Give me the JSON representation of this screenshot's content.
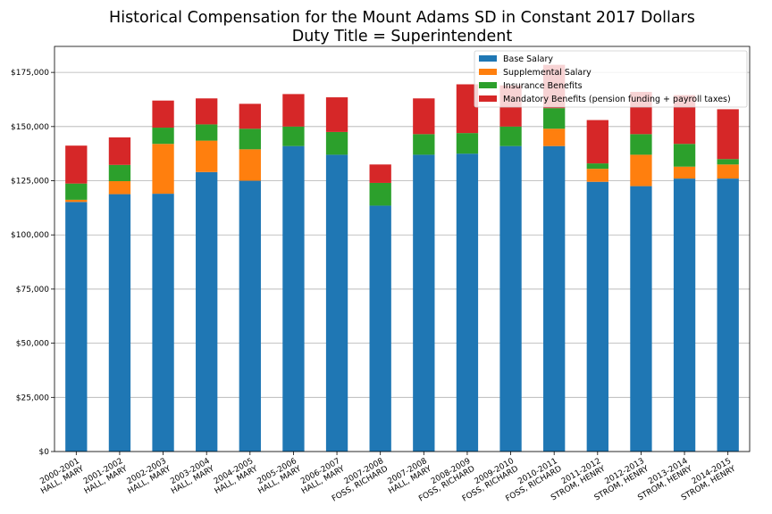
{
  "chart_data": {
    "type": "bar",
    "stacked": true,
    "title": "Historical Compensation for the Mount Adams SD in Constant 2017 Dollars",
    "subtitle": "Duty Title = Superintendent",
    "xlabel": "",
    "ylabel": "",
    "ylim": [
      0,
      187000
    ],
    "yticks": [
      0,
      25000,
      50000,
      75000,
      100000,
      125000,
      150000,
      175000
    ],
    "ytick_labels": [
      "$0",
      "$25,000",
      "$50,000",
      "$75,000",
      "$100,000",
      "$125,000",
      "$150,000",
      "$175,000"
    ],
    "grid": "horizontal",
    "legend_position": "top-right",
    "categories": [
      [
        "2000-2001",
        "HALL, MARY"
      ],
      [
        "2001-2002",
        "HALL, MARY"
      ],
      [
        "2002-2003",
        "HALL, MARY"
      ],
      [
        "2003-2004",
        "HALL, MARY"
      ],
      [
        "2004-2005",
        "HALL, MARY"
      ],
      [
        "2005-2006",
        "HALL, MARY"
      ],
      [
        "2006-2007",
        "HALL, MARY"
      ],
      [
        "2007-2008",
        "FOSS, RICHARD"
      ],
      [
        "2007-2008",
        "HALL, MARY"
      ],
      [
        "2008-2009",
        "FOSS, RICHARD"
      ],
      [
        "2009-2010",
        "FOSS, RICHARD"
      ],
      [
        "2010-2011",
        "FOSS, RICHARD"
      ],
      [
        "2011-2012",
        "STROM, HENRY"
      ],
      [
        "2012-2013",
        "STROM, HENRY"
      ],
      [
        "2013-2014",
        "STROM, HENRY"
      ],
      [
        "2014-2015",
        "STROM, HENRY"
      ]
    ],
    "series": [
      {
        "name": "Base Salary",
        "color": "#1f77b4",
        "values": [
          115200,
          118800,
          119000,
          129000,
          125000,
          141000,
          137000,
          113500,
          137000,
          137500,
          141000,
          141000,
          124500,
          122500,
          126000,
          126000
        ]
      },
      {
        "name": "Supplemental Salary",
        "color": "#ff7f0e",
        "values": [
          1000,
          6000,
          23000,
          14500,
          14500,
          0,
          0,
          0,
          0,
          0,
          0,
          8000,
          6000,
          14500,
          5500,
          6500
        ]
      },
      {
        "name": "Insurance Benefits",
        "color": "#2ca02c",
        "values": [
          7500,
          7500,
          7500,
          7500,
          9500,
          9000,
          10500,
          10500,
          9500,
          9500,
          9000,
          9500,
          2500,
          9500,
          10500,
          2500
        ]
      },
      {
        "name": "Mandatory Benefits (pension funding + payroll taxes)",
        "color": "#d62728",
        "values": [
          17500,
          12700,
          12500,
          12000,
          11500,
          15000,
          16000,
          8500,
          16500,
          22500,
          19000,
          20000,
          20000,
          19500,
          22500,
          23000
        ]
      }
    ]
  }
}
